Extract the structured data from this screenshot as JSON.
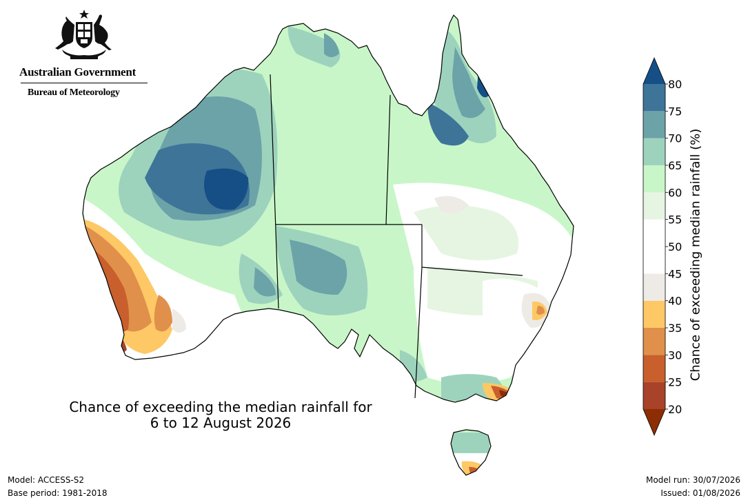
{
  "logo": {
    "government": "Australian Government",
    "bureau": "Bureau of Meteorology"
  },
  "map": {
    "title_line1": "Chance of exceeding the median rainfall for",
    "title_line2": "6 to 12 August 2026",
    "region": "Australia"
  },
  "colorbar": {
    "label": "Chance of exceeding median rainfall (%)",
    "ticks": [
      "20",
      "25",
      "30",
      "35",
      "40",
      "45",
      "50",
      "55",
      "60",
      "65",
      "70",
      "75",
      "80"
    ],
    "bins": [
      {
        "range": "<20",
        "color": "#8c2d04"
      },
      {
        "range": "20-25",
        "color": "#a8432a"
      },
      {
        "range": "25-30",
        "color": "#c85f2c"
      },
      {
        "range": "30-35",
        "color": "#e0904a"
      },
      {
        "range": "35-40",
        "color": "#fdc865"
      },
      {
        "range": "40-45",
        "color": "#eeebe7"
      },
      {
        "range": "45-50",
        "color": "#ffffff"
      },
      {
        "range": "50-55",
        "color": "#ffffff"
      },
      {
        "range": "55-60",
        "color": "#e6f5e2"
      },
      {
        "range": "60-65",
        "color": "#c8f6c8"
      },
      {
        "range": "65-70",
        "color": "#9dd3bd"
      },
      {
        "range": "70-75",
        "color": "#6ca3a8"
      },
      {
        "range": "75-80",
        "color": "#3e7498"
      },
      {
        "range": ">80",
        "color": "#164f86"
      }
    ]
  },
  "footer": {
    "model": "Model: ACCESS-S2",
    "base_period": "Base period: 1981-2018",
    "model_run": "Model run: 30/07/2026",
    "issued": "Issued: 01/08/2026"
  }
}
